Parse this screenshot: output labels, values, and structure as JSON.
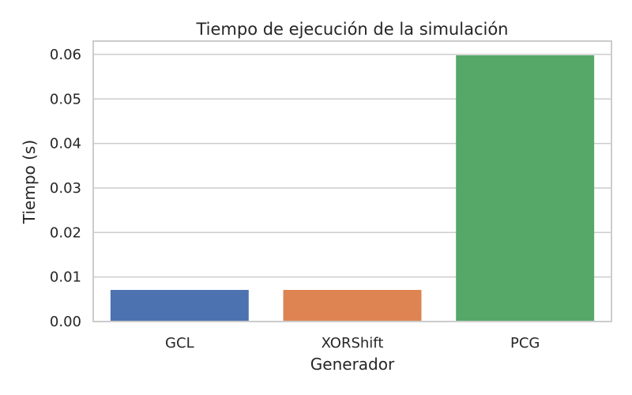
{
  "chart_data": {
    "type": "bar",
    "title": "Tiempo de ejecución de la simulación",
    "xlabel": "Generador",
    "ylabel": "Tiempo (s)",
    "categories": [
      "GCL",
      "XORShift",
      "PCG"
    ],
    "values": [
      0.0071,
      0.0071,
      0.0598
    ],
    "colors": [
      "#4c72b0",
      "#dd8452",
      "#55a868"
    ],
    "ylim": [
      0,
      0.063
    ],
    "yticks": [
      0.0,
      0.01,
      0.02,
      0.03,
      0.04,
      0.05,
      0.06
    ],
    "ytick_labels": [
      "0.00",
      "0.01",
      "0.02",
      "0.03",
      "0.04",
      "0.05",
      "0.06"
    ],
    "grid": true,
    "grid_axis": "y"
  }
}
